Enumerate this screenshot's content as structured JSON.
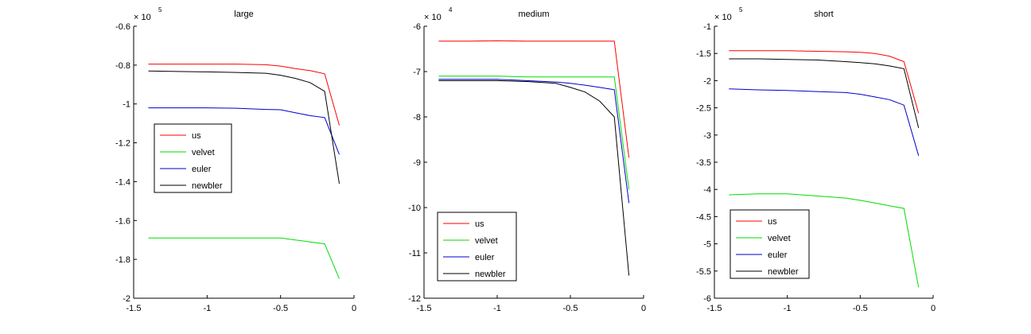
{
  "figure": {
    "background": "#ffffff"
  },
  "chart_data": [
    {
      "type": "line",
      "title": "large",
      "xlabel": "",
      "ylabel": "",
      "xlim": [
        -1.5,
        0
      ],
      "ylim": [
        -2,
        -0.6
      ],
      "xticks": [
        -1.5,
        -1,
        -0.5,
        0
      ],
      "xtick_labels": [
        "-1.5",
        "-1",
        "-0.5",
        "0"
      ],
      "yticks": [
        -2,
        -1.8,
        -1.6,
        -1.4,
        -1.2,
        -1,
        -0.8,
        -0.6
      ],
      "ytick_labels": [
        "-2",
        "-1.8",
        "-1.6",
        "-1.4",
        "-1.2",
        "-1",
        "-0.8",
        "-0.6"
      ],
      "exponent_base": "× 10",
      "exponent_power": "5",
      "grid": false,
      "legend_position": "left-middle",
      "series": [
        {
          "name": "us",
          "color": "#ff0000",
          "x": [
            -1.4,
            -1.2,
            -1.0,
            -0.8,
            -0.6,
            -0.5,
            -0.4,
            -0.3,
            -0.2,
            -0.1
          ],
          "y": [
            -0.795,
            -0.795,
            -0.795,
            -0.795,
            -0.798,
            -0.805,
            -0.818,
            -0.828,
            -0.845,
            -1.11
          ]
        },
        {
          "name": "velvet",
          "color": "#00dd00",
          "x": [
            -1.4,
            -1.2,
            -1.0,
            -0.8,
            -0.6,
            -0.5,
            -0.4,
            -0.3,
            -0.2,
            -0.1
          ],
          "y": [
            -1.69,
            -1.69,
            -1.69,
            -1.69,
            -1.69,
            -1.69,
            -1.7,
            -1.71,
            -1.72,
            -1.9
          ]
        },
        {
          "name": "euler",
          "color": "#0000cc",
          "x": [
            -1.4,
            -1.2,
            -1.0,
            -0.8,
            -0.6,
            -0.5,
            -0.4,
            -0.3,
            -0.2,
            -0.1
          ],
          "y": [
            -1.02,
            -1.02,
            -1.02,
            -1.022,
            -1.028,
            -1.03,
            -1.045,
            -1.06,
            -1.07,
            -1.26
          ]
        },
        {
          "name": "newbler",
          "color": "#000000",
          "x": [
            -1.4,
            -1.2,
            -1.0,
            -0.8,
            -0.6,
            -0.5,
            -0.4,
            -0.3,
            -0.2,
            -0.1
          ],
          "y": [
            -0.83,
            -0.833,
            -0.835,
            -0.838,
            -0.842,
            -0.852,
            -0.868,
            -0.89,
            -0.935,
            -1.41
          ]
        }
      ]
    },
    {
      "type": "line",
      "title": "medium",
      "xlabel": "",
      "ylabel": "",
      "xlim": [
        -1.5,
        0
      ],
      "ylim": [
        -12,
        -6
      ],
      "xticks": [
        -1.5,
        -1,
        -0.5,
        0
      ],
      "xtick_labels": [
        "-1.5",
        "-1",
        "-0.5",
        "0"
      ],
      "yticks": [
        -12,
        -11,
        -10,
        -9,
        -8,
        -7,
        -6
      ],
      "ytick_labels": [
        "-12",
        "-11",
        "-10",
        "-9",
        "-8",
        "-7",
        "-6"
      ],
      "exponent_base": "× 10",
      "exponent_power": "4",
      "grid": false,
      "legend_position": "bottom-left",
      "series": [
        {
          "name": "us",
          "color": "#ff0000",
          "x": [
            -1.4,
            -1.2,
            -1.0,
            -0.8,
            -0.6,
            -0.5,
            -0.4,
            -0.3,
            -0.2,
            -0.1
          ],
          "y": [
            -6.33,
            -6.33,
            -6.32,
            -6.33,
            -6.33,
            -6.33,
            -6.33,
            -6.33,
            -6.33,
            -8.9
          ]
        },
        {
          "name": "velvet",
          "color": "#00dd00",
          "x": [
            -1.4,
            -1.2,
            -1.0,
            -0.8,
            -0.6,
            -0.5,
            -0.4,
            -0.3,
            -0.2,
            -0.1
          ],
          "y": [
            -7.1,
            -7.1,
            -7.1,
            -7.12,
            -7.12,
            -7.12,
            -7.12,
            -7.12,
            -7.12,
            -9.6
          ]
        },
        {
          "name": "euler",
          "color": "#0000cc",
          "x": [
            -1.4,
            -1.2,
            -1.0,
            -0.8,
            -0.6,
            -0.5,
            -0.4,
            -0.3,
            -0.2,
            -0.1
          ],
          "y": [
            -7.17,
            -7.17,
            -7.17,
            -7.2,
            -7.23,
            -7.26,
            -7.3,
            -7.35,
            -7.4,
            -9.9
          ]
        },
        {
          "name": "newbler",
          "color": "#000000",
          "x": [
            -1.4,
            -1.2,
            -1.0,
            -0.8,
            -0.6,
            -0.5,
            -0.4,
            -0.3,
            -0.2,
            -0.1
          ],
          "y": [
            -7.2,
            -7.2,
            -7.2,
            -7.22,
            -7.26,
            -7.35,
            -7.45,
            -7.65,
            -8.0,
            -11.5
          ]
        }
      ]
    },
    {
      "type": "line",
      "title": "short",
      "xlabel": "",
      "ylabel": "",
      "xlim": [
        -1.5,
        0
      ],
      "ylim": [
        -6,
        -1
      ],
      "xticks": [
        -1.5,
        -1,
        -0.5,
        0
      ],
      "xtick_labels": [
        "-1.5",
        "-1",
        "-0.5",
        "0"
      ],
      "yticks": [
        -6,
        -5.5,
        -5,
        -4.5,
        -4,
        -3.5,
        -3,
        -2.5,
        -2,
        -1.5,
        -1
      ],
      "ytick_labels": [
        "-6",
        "-5.5",
        "-5",
        "-4.5",
        "-4",
        "-3.5",
        "-3",
        "-2.5",
        "-2",
        "-1.5",
        "-1"
      ],
      "exponent_base": "× 10",
      "exponent_power": "5",
      "grid": false,
      "legend_position": "bottom-left",
      "series": [
        {
          "name": "us",
          "color": "#ff0000",
          "x": [
            -1.4,
            -1.2,
            -1.0,
            -0.8,
            -0.6,
            -0.5,
            -0.4,
            -0.3,
            -0.2,
            -0.1
          ],
          "y": [
            -1.45,
            -1.45,
            -1.45,
            -1.46,
            -1.47,
            -1.48,
            -1.5,
            -1.55,
            -1.65,
            -2.6
          ]
        },
        {
          "name": "velvet",
          "color": "#00dd00",
          "x": [
            -1.4,
            -1.2,
            -1.0,
            -0.8,
            -0.6,
            -0.5,
            -0.4,
            -0.3,
            -0.2,
            -0.1
          ],
          "y": [
            -4.1,
            -4.08,
            -4.08,
            -4.12,
            -4.16,
            -4.2,
            -4.25,
            -4.3,
            -4.35,
            -5.8
          ]
        },
        {
          "name": "euler",
          "color": "#0000cc",
          "x": [
            -1.4,
            -1.2,
            -1.0,
            -0.8,
            -0.6,
            -0.5,
            -0.4,
            -0.3,
            -0.2,
            -0.1
          ],
          "y": [
            -2.15,
            -2.17,
            -2.18,
            -2.2,
            -2.22,
            -2.25,
            -2.3,
            -2.35,
            -2.45,
            -3.38
          ]
        },
        {
          "name": "newbler",
          "color": "#000000",
          "x": [
            -1.4,
            -1.2,
            -1.0,
            -0.8,
            -0.6,
            -0.5,
            -0.4,
            -0.3,
            -0.2,
            -0.1
          ],
          "y": [
            -1.6,
            -1.6,
            -1.61,
            -1.62,
            -1.65,
            -1.67,
            -1.69,
            -1.73,
            -1.78,
            -2.87
          ]
        }
      ]
    }
  ]
}
